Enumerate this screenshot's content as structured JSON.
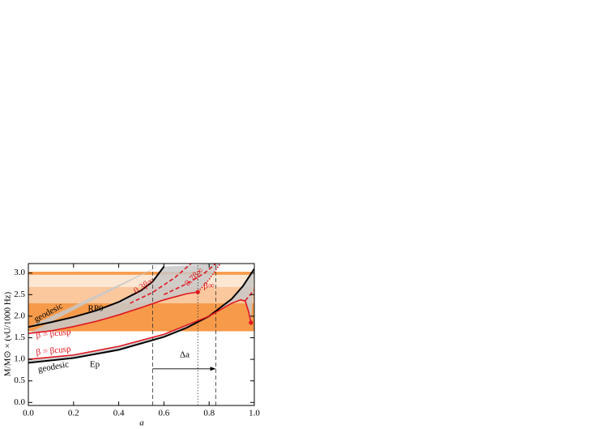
{
  "chart_data": {
    "type": "line",
    "xlabel": "a",
    "ylabel": "M/M⊙ × (νU/1000 Hz)",
    "xlim": [
      0,
      1
    ],
    "ylim": [
      -0.07,
      3.22
    ],
    "xticks": [
      {
        "value": 0,
        "label": "0.0"
      },
      0.2,
      0.4,
      0.6,
      0.8,
      {
        "value": 1,
        "label": "1.0"
      }
    ],
    "yticks": [
      {
        "value": 0,
        "label": "0.0"
      },
      0.5,
      {
        "value": 1,
        "label": "1.0"
      },
      1.5,
      {
        "value": 2,
        "label": "2.0"
      },
      2.5,
      {
        "value": 3,
        "label": "3.0"
      }
    ],
    "bands": [
      {
        "y": [
          1.65,
          2.3
        ],
        "color": "#f79a4a"
      },
      {
        "y": [
          2.3,
          2.68
        ],
        "color": "#fbc79d"
      },
      {
        "y": [
          2.68,
          2.96
        ],
        "color": "#fde6d2"
      },
      {
        "y": [
          2.96,
          3.03
        ],
        "color": "#f79a4a"
      }
    ],
    "series": [
      {
        "color": "#000000",
        "dash": "solid",
        "x": [
          0,
          0.1,
          0.2,
          0.3,
          0.4,
          0.5,
          0.55,
          0.6
        ],
        "values": [
          1.75,
          1.86,
          1.98,
          2.13,
          2.33,
          2.6,
          2.8,
          3.15
        ]
      },
      {
        "color": "#000000",
        "dash": "solid",
        "x": [
          0,
          0.2,
          0.4,
          0.6,
          0.7,
          0.8,
          0.9,
          0.95,
          1.0
        ],
        "values": [
          0.92,
          1.03,
          1.22,
          1.52,
          1.73,
          2.0,
          2.4,
          2.7,
          3.1
        ]
      },
      {
        "color": "#e0161e",
        "dash": "solid",
        "x": [
          0,
          0.1,
          0.2,
          0.3,
          0.4,
          0.5,
          0.6,
          0.7,
          0.75
        ],
        "values": [
          1.6,
          1.66,
          1.76,
          1.88,
          2.03,
          2.2,
          2.38,
          2.52,
          2.56
        ]
      },
      {
        "color": "#e0161e",
        "dash": "solid",
        "x": [
          0,
          0.2,
          0.4,
          0.6,
          0.8,
          0.9,
          0.94,
          0.96,
          0.975,
          0.985
        ],
        "values": [
          1.0,
          1.1,
          1.3,
          1.58,
          2.0,
          2.3,
          2.38,
          2.35,
          2.1,
          1.85
        ]
      },
      {
        "color": "#e0161e",
        "dash": "dashed",
        "x": [
          0.45,
          0.55,
          0.65,
          0.72
        ],
        "values": [
          2.3,
          2.55,
          2.9,
          3.22
        ]
      },
      {
        "color": "#e0161e",
        "dash": "dashed",
        "x": [
          0.6,
          0.7,
          0.78,
          0.83
        ],
        "values": [
          2.5,
          2.75,
          3.0,
          3.22
        ]
      },
      {
        "color": "#e0161e",
        "dash": "dotted",
        "x": [
          0.75,
          0.8,
          0.85
        ],
        "values": [
          2.56,
          2.85,
          3.22
        ]
      },
      {
        "color": "#e0161e",
        "dash": "dashed",
        "x": [
          0.96,
          0.99,
          1.0
        ],
        "values": [
          2.36,
          2.55,
          2.6
        ]
      }
    ],
    "vlines": [
      {
        "x": 0.55,
        "dash": "dashed"
      },
      {
        "x": 0.75,
        "dash": "dotted"
      },
      {
        "x": 0.83,
        "dash": "dashed"
      }
    ],
    "arrow": {
      "x": [
        0.55,
        0.83
      ],
      "y": 0.78
    },
    "annotations": [
      "geodesic",
      "RP0",
      "β = βcusp",
      "β = βcusp",
      "geodesic",
      "Ep",
      "0.3β∞",
      "0.7β∞",
      "β∞",
      "Δa"
    ]
  }
}
